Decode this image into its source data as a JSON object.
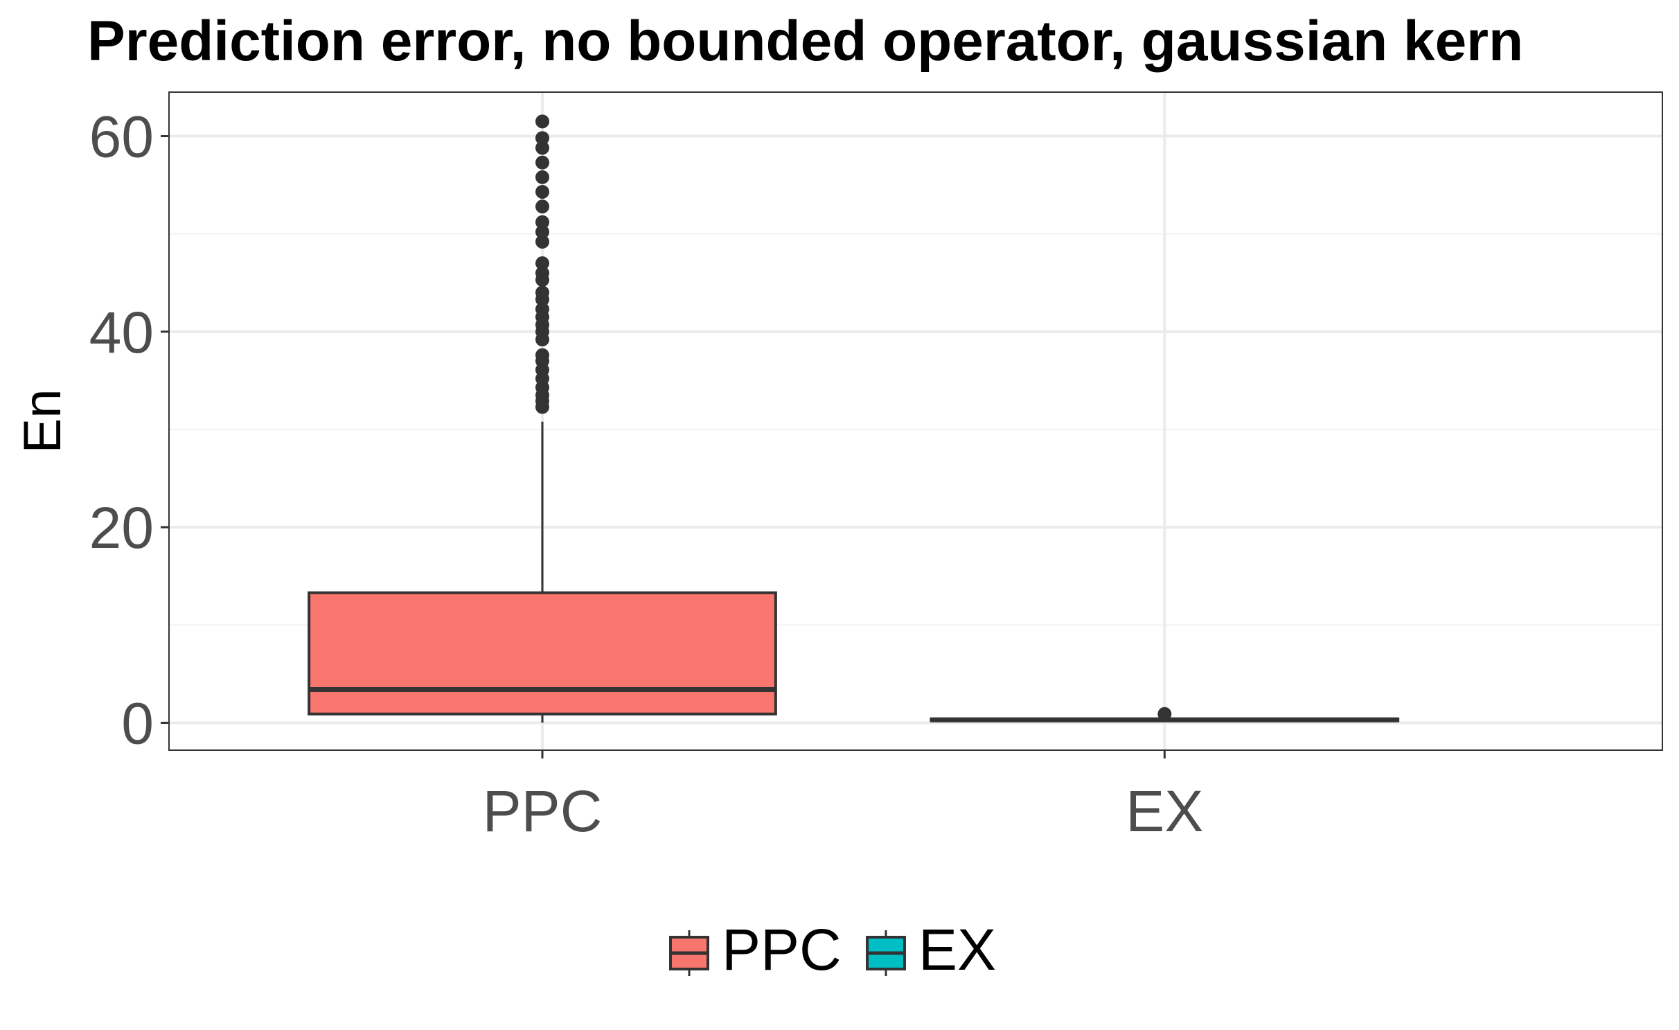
{
  "chart_data": {
    "type": "box",
    "title": "Prediction error, no bounded operator, gaussian kern",
    "xlabel": "",
    "ylabel": "En",
    "ylim": [
      -2.8,
      64.5
    ],
    "y_ticks": [
      0,
      20,
      40,
      60
    ],
    "grid": true,
    "legend_position": "bottom",
    "categories": [
      "PPC",
      "EX"
    ],
    "series": [
      {
        "name": "PPC",
        "color": "#F8766D",
        "q1": 0.9,
        "median": 3.4,
        "q3": 13.3,
        "whisker_low": 0.0,
        "whisker_high": 30.8,
        "outliers": [
          32.3,
          32.9,
          33.5,
          34.3,
          35.2,
          36.1,
          37.0,
          37.6,
          39.2,
          40.0,
          40.7,
          41.5,
          42.3,
          43.3,
          44.0,
          45.3,
          46.0,
          47.0,
          49.2,
          50.2,
          51.2,
          52.8,
          54.3,
          55.8,
          57.3,
          58.8,
          59.8,
          61.5
        ]
      },
      {
        "name": "EX",
        "color": "#00BFC4",
        "q1": 0.2,
        "median": 0.3,
        "q3": 0.4,
        "whisker_low": 0.1,
        "whisker_high": 0.6,
        "outliers": [
          0.9
        ]
      }
    ]
  }
}
